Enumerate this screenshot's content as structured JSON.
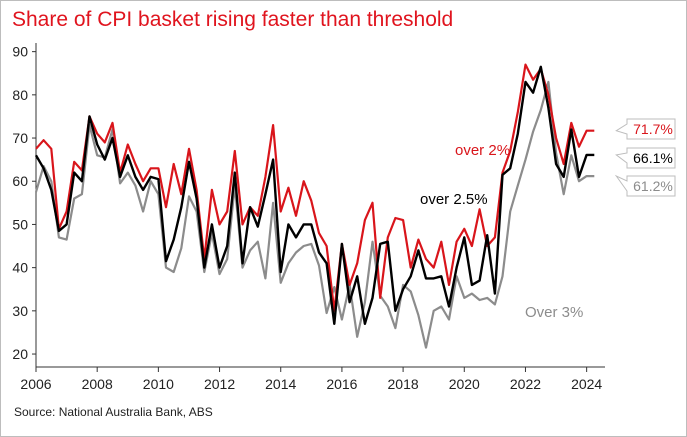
{
  "title": "Share of CPI basket rising faster than threshold",
  "source": "Source: National Australia Bank, ABS",
  "colors": {
    "over2": "#d9151b",
    "over25": "#000000",
    "over3": "#8c8c8c",
    "title": "#e0141e"
  },
  "chart_data": {
    "type": "line",
    "title": "Share of CPI basket rising faster than threshold",
    "xlabel": "",
    "ylabel": "",
    "xlim": [
      2006,
      2024.6
    ],
    "ylim": [
      17,
      92
    ],
    "xticks": [
      2006,
      2008,
      2010,
      2012,
      2014,
      2016,
      2018,
      2020,
      2022,
      2024
    ],
    "yticks": [
      20,
      30,
      40,
      50,
      60,
      70,
      80,
      90
    ],
    "grid": false,
    "legend": "none",
    "x": [
      2006.0,
      2006.25,
      2006.5,
      2006.75,
      2007.0,
      2007.25,
      2007.5,
      2007.75,
      2008.0,
      2008.25,
      2008.5,
      2008.75,
      2009.0,
      2009.25,
      2009.5,
      2009.75,
      2010.0,
      2010.25,
      2010.5,
      2010.75,
      2011.0,
      2011.25,
      2011.5,
      2011.75,
      2012.0,
      2012.25,
      2012.5,
      2012.75,
      2013.0,
      2013.25,
      2013.5,
      2013.75,
      2014.0,
      2014.25,
      2014.5,
      2014.75,
      2015.0,
      2015.25,
      2015.5,
      2015.75,
      2016.0,
      2016.25,
      2016.5,
      2016.75,
      2017.0,
      2017.25,
      2017.5,
      2017.75,
      2018.0,
      2018.25,
      2018.5,
      2018.75,
      2019.0,
      2019.25,
      2019.5,
      2019.75,
      2020.0,
      2020.25,
      2020.5,
      2020.75,
      2021.0,
      2021.25,
      2021.5,
      2021.75,
      2022.0,
      2022.25,
      2022.5,
      2022.75,
      2023.0,
      2023.25,
      2023.5,
      2023.75,
      2024.0,
      2024.25
    ],
    "series": [
      {
        "name": "over 2%",
        "end_label": "71.7%",
        "values": [
          67.5,
          69.5,
          67.5,
          49,
          53,
          64.5,
          62.5,
          75,
          71,
          69,
          73.5,
          62,
          68.5,
          64,
          60,
          63,
          63,
          54,
          64,
          57,
          67.5,
          58,
          42,
          58,
          50,
          53,
          67,
          50,
          54,
          52,
          61,
          73,
          53,
          58.5,
          52,
          60,
          55.5,
          48,
          45,
          30,
          45.5,
          36,
          41,
          51,
          55,
          33,
          47,
          51.5,
          51,
          40,
          46.5,
          42,
          40,
          46,
          36,
          46,
          49,
          45,
          53.5,
          45,
          47,
          62,
          67,
          76,
          87,
          83.5,
          86,
          80,
          70,
          64,
          73.5,
          68,
          71.7,
          71.7
        ],
        "end_value": 71.7
      },
      {
        "name": "over 2.5%",
        "end_label": "66.1%",
        "values": [
          66,
          63,
          58,
          48.5,
          50,
          62,
          60,
          75,
          68.5,
          65,
          70,
          61,
          66,
          61,
          58,
          61,
          60.5,
          41.5,
          46.5,
          54,
          64.5,
          56,
          40,
          50,
          40,
          45,
          62,
          41,
          54,
          49.5,
          57,
          65,
          39,
          50,
          47,
          50,
          50,
          43.5,
          41,
          27,
          45.5,
          32,
          38,
          27,
          33,
          45.5,
          46,
          30,
          35,
          38,
          44,
          37.5,
          37.5,
          38,
          31,
          40,
          47,
          36,
          37,
          47.5,
          34,
          61.5,
          63,
          71,
          83,
          80.5,
          86.5,
          77,
          64,
          61,
          72,
          61,
          66.1,
          66.1
        ],
        "end_value": 66.1
      },
      {
        "name": "Over 3%",
        "end_label": "61.2%",
        "values": [
          57.5,
          63.5,
          60,
          47,
          46.5,
          56,
          57,
          73,
          66,
          65.5,
          72,
          59.5,
          62,
          59,
          53,
          60,
          57,
          40,
          39,
          44.5,
          56.5,
          53,
          39,
          48,
          38.5,
          42,
          59,
          40,
          44,
          46,
          37.5,
          55,
          36.5,
          41,
          43.5,
          45,
          45.5,
          40.5,
          29.5,
          35.5,
          28,
          36,
          24,
          32,
          46,
          33.5,
          31,
          26,
          36,
          34.5,
          29,
          21.5,
          30,
          31,
          28,
          38,
          33,
          34,
          32.5,
          33,
          31.5,
          38,
          53,
          59,
          65,
          71.5,
          76.5,
          83,
          66.5,
          57,
          66,
          60,
          61.2,
          61.2
        ],
        "end_value": 61.2
      }
    ],
    "annotations": [
      "over 2%",
      "over 2.5%",
      "Over 3%"
    ]
  }
}
